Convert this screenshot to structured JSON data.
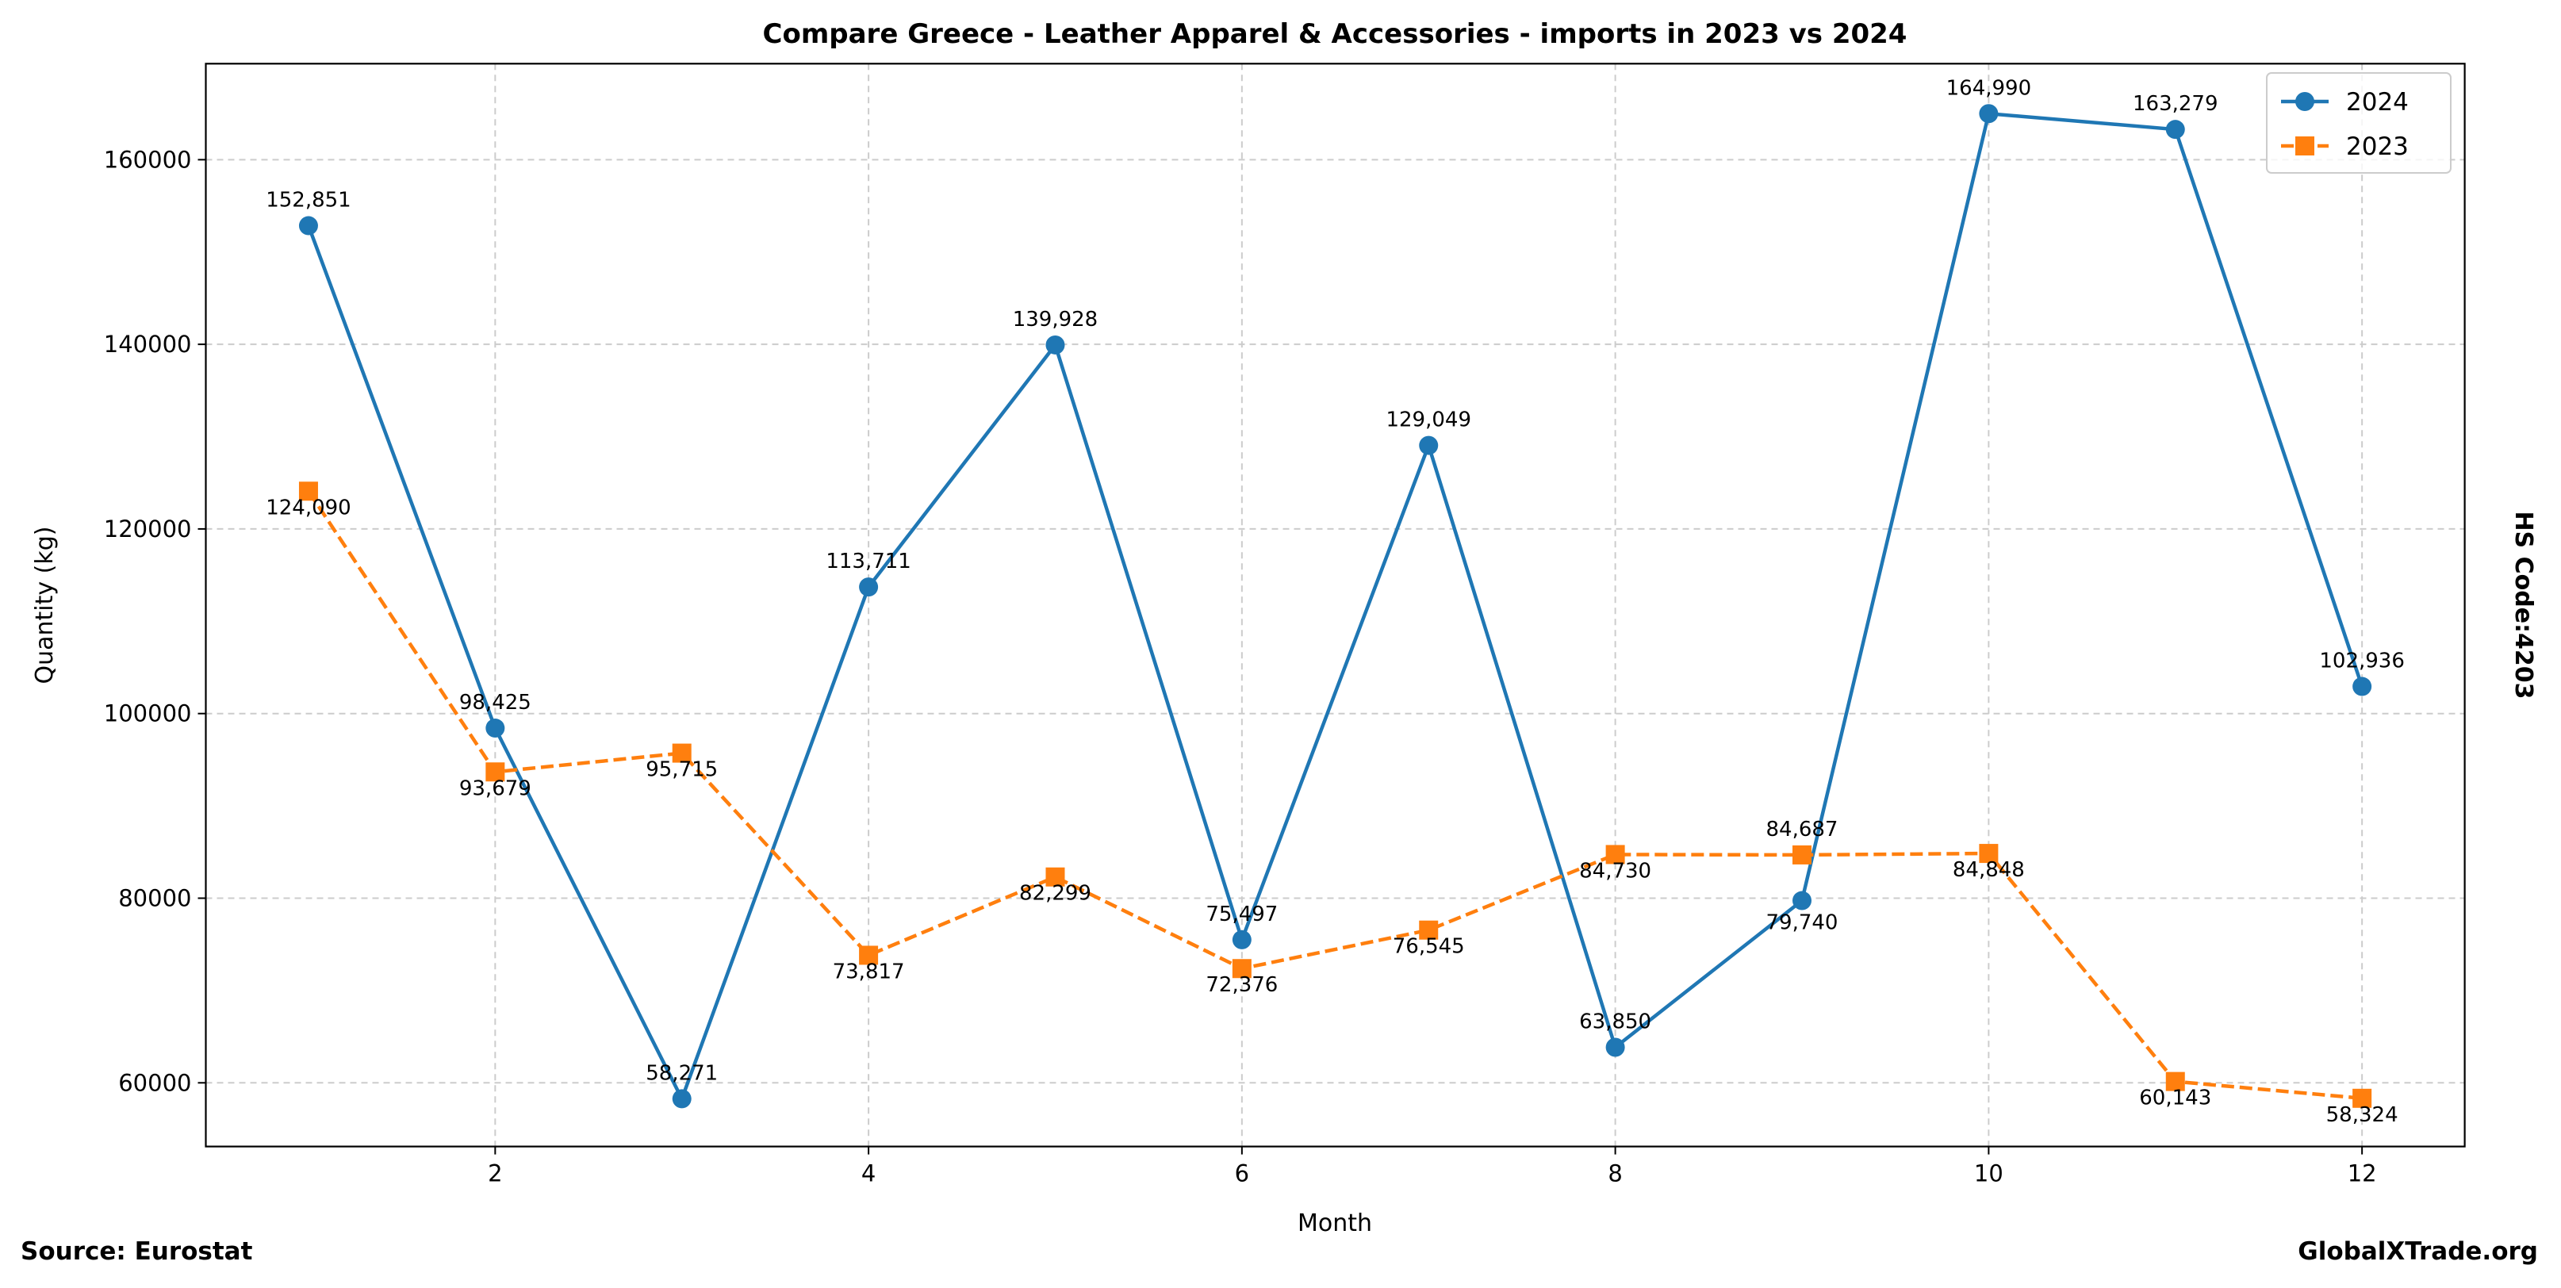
{
  "chart_data": {
    "type": "line",
    "title": "Compare Greece - Leather Apparel & Accessories - imports in 2023 vs 2024",
    "xlabel": "Month",
    "ylabel": "Quantity (kg)",
    "side_label": "HS Code:4203",
    "source": "Source: Eurostat",
    "brand": "GlobalXTrade.org",
    "xlim": [
      0.45,
      12.55
    ],
    "ylim": [
      53100,
      170400
    ],
    "xticks": [
      2,
      4,
      6,
      8,
      10,
      12
    ],
    "yticks": [
      60000,
      80000,
      100000,
      120000,
      140000,
      160000
    ],
    "grid": true,
    "legend_position": "top-right",
    "x": [
      1,
      2,
      3,
      4,
      5,
      6,
      7,
      8,
      9,
      10,
      11,
      12
    ],
    "series": [
      {
        "name": "2024",
        "color": "#1f77b4",
        "marker": "circle",
        "linestyle": "solid",
        "values": [
          152851,
          98425,
          58271,
          113711,
          139928,
          75497,
          129049,
          63850,
          79740,
          164990,
          163279,
          102936
        ],
        "labels": [
          "152,851",
          "98,425",
          "58,271",
          "113,711",
          "139,928",
          "75,497",
          "129,049",
          "63,850",
          "79,740",
          "164,990",
          "163,279",
          "102,936"
        ]
      },
      {
        "name": "2023",
        "color": "#ff7f0e",
        "marker": "square",
        "linestyle": "dashed",
        "values": [
          124090,
          93679,
          95715,
          73817,
          82299,
          72376,
          76545,
          84730,
          84687,
          84848,
          60143,
          58324
        ],
        "labels": [
          "124,090",
          "93,679",
          "95,715",
          "73,817",
          "82,299",
          "72,376",
          "76,545",
          "84,730",
          "84,687",
          "84,848",
          "60,143",
          "58,324"
        ]
      }
    ]
  }
}
